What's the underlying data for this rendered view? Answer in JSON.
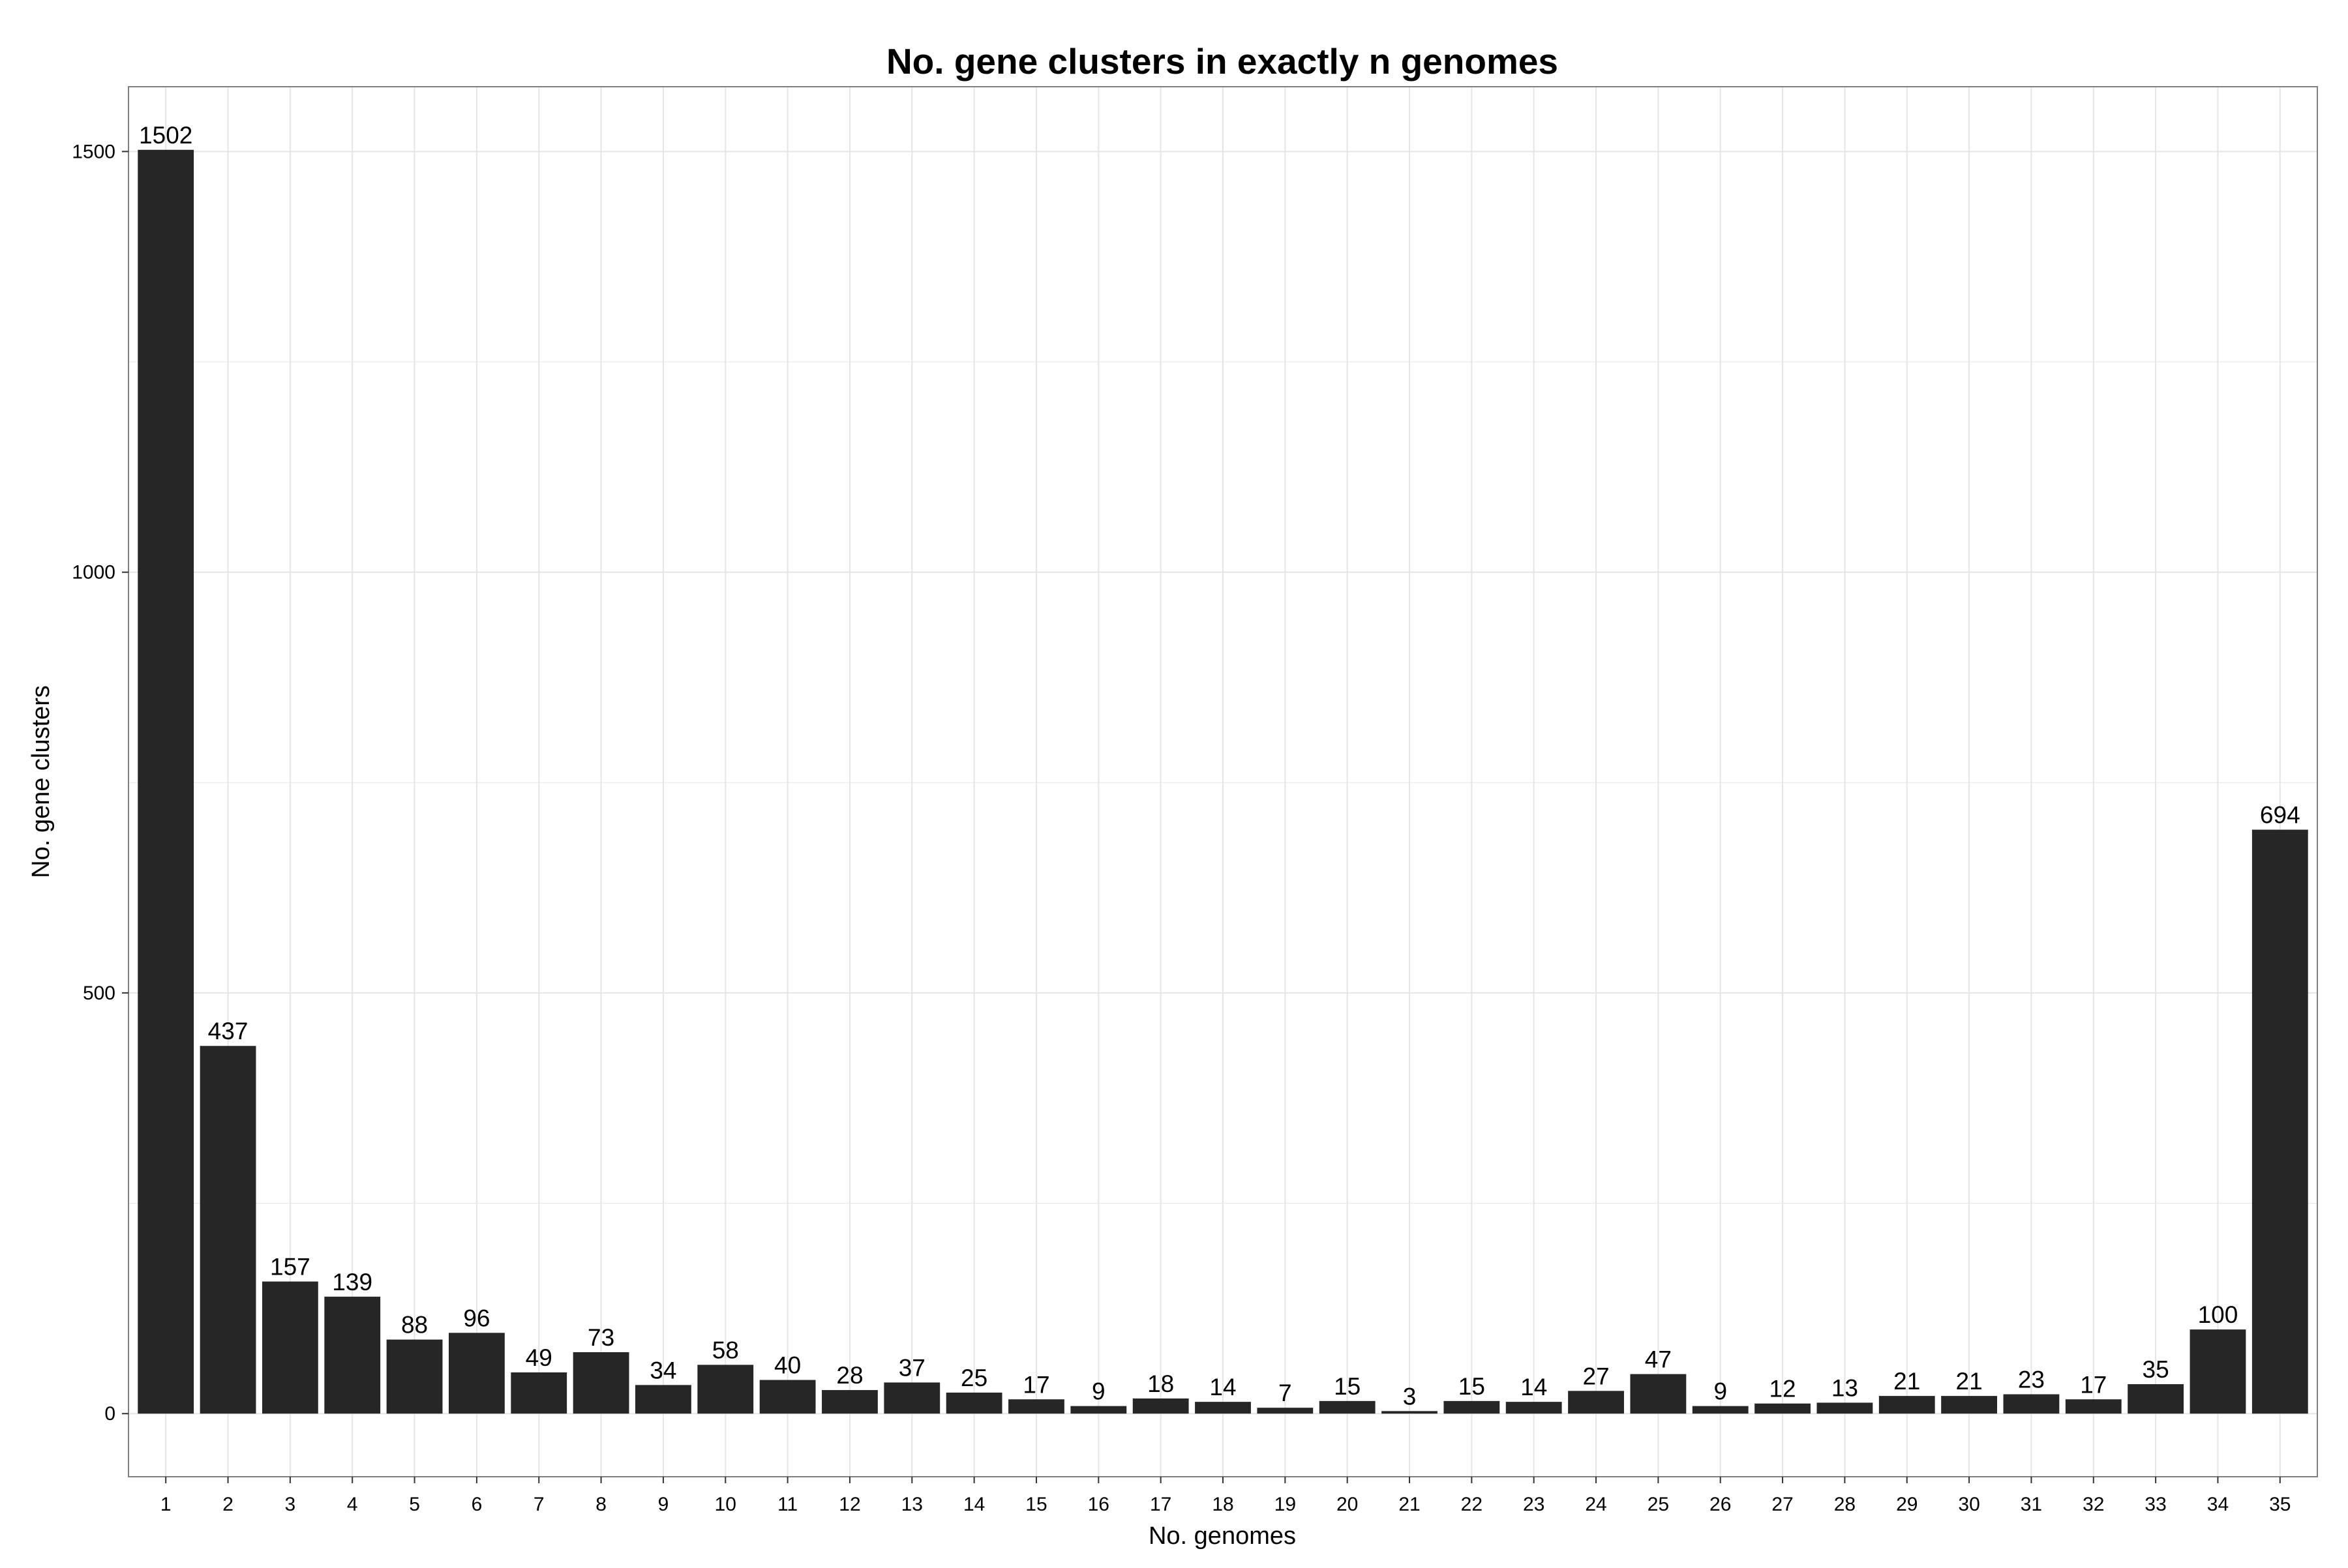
{
  "chart_data": {
    "type": "bar",
    "title": "No. gene clusters in exactly n genomes",
    "xlabel": "No. genomes",
    "ylabel": "No. gene clusters",
    "categories": [
      "1",
      "2",
      "3",
      "4",
      "5",
      "6",
      "7",
      "8",
      "9",
      "10",
      "11",
      "12",
      "13",
      "14",
      "15",
      "16",
      "17",
      "18",
      "19",
      "20",
      "21",
      "22",
      "23",
      "24",
      "25",
      "26",
      "27",
      "28",
      "29",
      "30",
      "31",
      "32",
      "33",
      "34",
      "35"
    ],
    "values": [
      1502,
      437,
      157,
      139,
      88,
      96,
      49,
      73,
      34,
      58,
      40,
      28,
      37,
      25,
      17,
      9,
      18,
      14,
      7,
      15,
      3,
      15,
      14,
      27,
      47,
      9,
      12,
      13,
      21,
      21,
      23,
      17,
      35,
      100,
      694
    ],
    "data_labels": [
      "1502",
      "437",
      "157",
      "139",
      "88",
      "96",
      "49",
      "73",
      "34",
      "58",
      "40",
      "28",
      "37",
      "25",
      "17",
      "9",
      "18",
      "14",
      "7",
      "15",
      "3",
      "15",
      "14",
      "27",
      "47",
      "9",
      "12",
      "13",
      "21",
      "21",
      "23",
      "17",
      "35",
      "100",
      "694"
    ],
    "y_ticks": [
      0,
      500,
      1000,
      1500
    ],
    "y_tick_labels": [
      "0",
      "500",
      "1000",
      "1500"
    ],
    "ylim": [
      -75,
      1577
    ],
    "grid": true,
    "legend": "none",
    "colors": {
      "bar": "#262626",
      "grid": "#e5e5e5",
      "frame": "#7f7f7f",
      "background": "#ffffff",
      "text": "#000000"
    }
  }
}
